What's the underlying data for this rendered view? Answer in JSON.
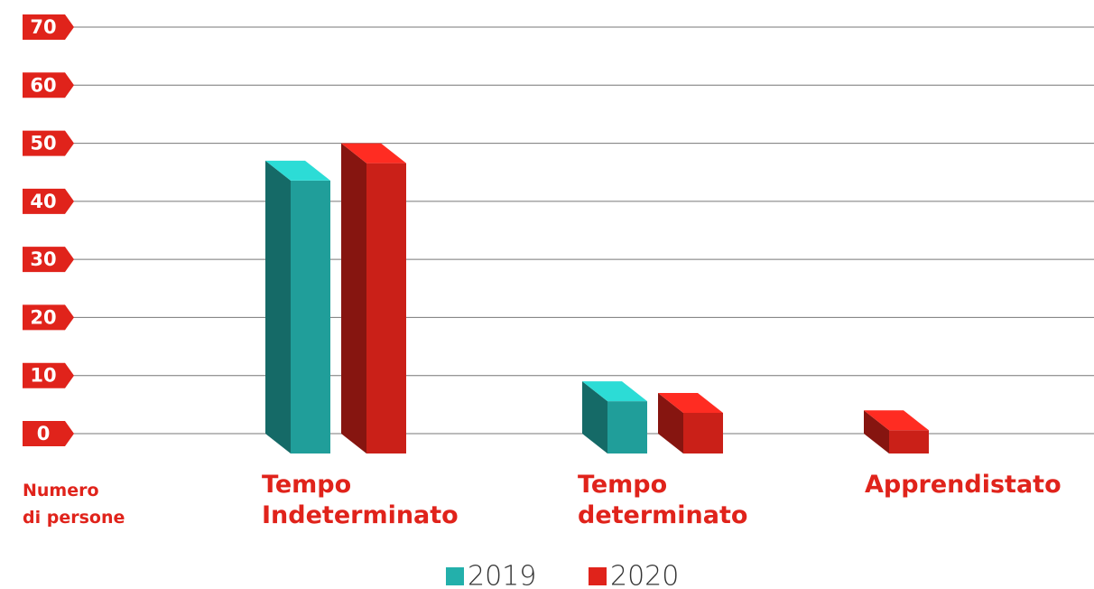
{
  "chart_data": {
    "type": "bar3d",
    "ylabel": "Numero\ndi persone",
    "categories": [
      "Tempo Indeterminato",
      "Tempo determinato",
      "Apprendistato"
    ],
    "series": [
      {
        "name": "2019",
        "color": "#23b0ab",
        "values": [
          47,
          9,
          null
        ]
      },
      {
        "name": "2020",
        "color": "#e0231b",
        "values": [
          50,
          7,
          4
        ]
      }
    ],
    "ylim": [
      0,
      70
    ],
    "yticks": [
      0,
      10,
      20,
      30,
      40,
      50,
      60,
      70
    ],
    "grid": true,
    "legend": "bottom"
  }
}
